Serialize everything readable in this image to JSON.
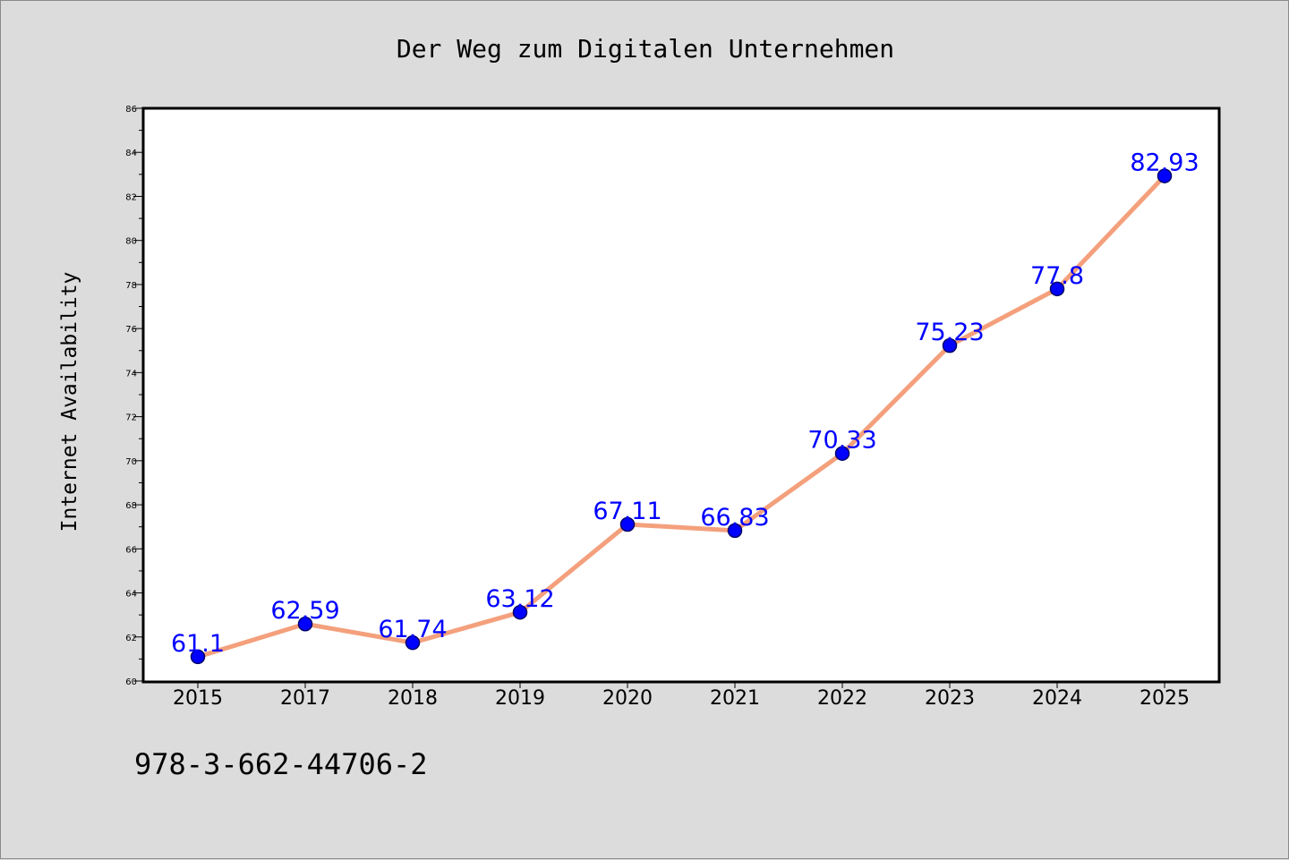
{
  "colors": {
    "background": "#dcdcdc",
    "plot_background": "#ffffff",
    "line": "#f4a07c",
    "marker": "#0000ff",
    "data_label": "#0000ff",
    "axis": "#000000"
  },
  "footer": {
    "isbn": "978-3-662-44706-2"
  },
  "chart_data": {
    "type": "line",
    "title": "Der Weg zum Digitalen Unternehmen",
    "xlabel": "",
    "ylabel": "Internet Availability",
    "categories": [
      "2015",
      "2017",
      "2018",
      "2019",
      "2020",
      "2021",
      "2022",
      "2023",
      "2024",
      "2025"
    ],
    "series": [
      {
        "values": [
          61.1,
          62.59,
          61.74,
          63.12,
          67.11,
          66.83,
          70.33,
          75.23,
          77.8,
          82.93
        ],
        "labels": [
          "61.1",
          "62.59",
          "61.74",
          "63.12",
          "67.11",
          "66.83",
          "70.33",
          "75.23",
          "77.8",
          "82.93"
        ]
      }
    ],
    "ylim": [
      60,
      86
    ],
    "y_ticks": [
      "60",
      "62",
      "64",
      "66",
      "68",
      "70",
      "72",
      "74",
      "76",
      "78",
      "80",
      "82",
      "84",
      "86"
    ],
    "grid": false,
    "legend": "none"
  }
}
